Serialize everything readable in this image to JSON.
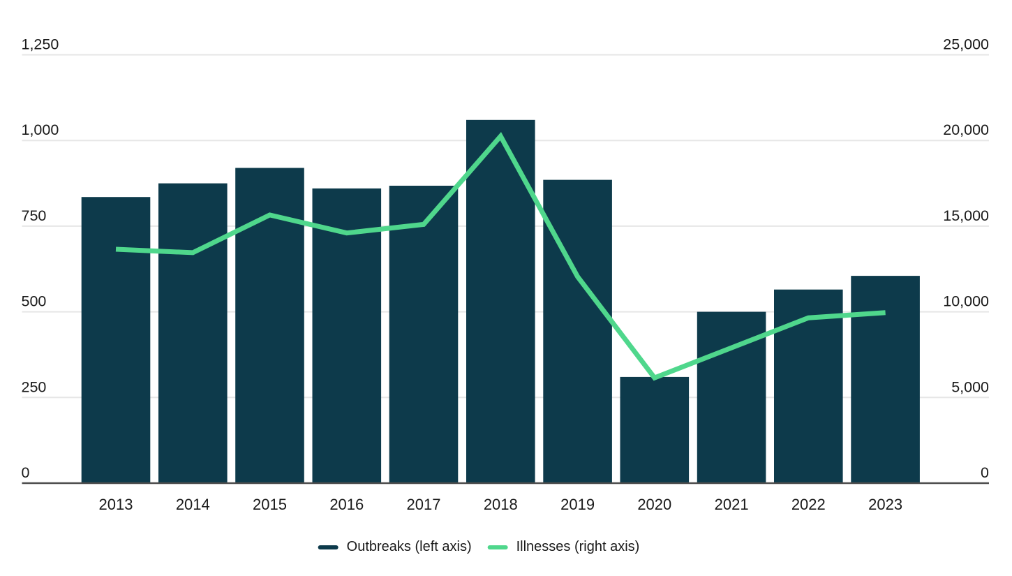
{
  "chart_data": {
    "type": "bar",
    "subtype": "dual-axis bar + line combo",
    "title": "",
    "categories": [
      "2013",
      "2014",
      "2015",
      "2016",
      "2017",
      "2018",
      "2019",
      "2020",
      "2021",
      "2022",
      "2023"
    ],
    "series": [
      {
        "name": "Outbreaks (left axis)",
        "type": "bar",
        "axis": "left",
        "color": "#0d3a4b",
        "values": [
          835,
          875,
          920,
          860,
          868,
          1060,
          885,
          310,
          500,
          565,
          605
        ]
      },
      {
        "name": "Illnesses (right axis)",
        "type": "line",
        "axis": "right",
        "color": "#4fd78c",
        "values": [
          13650,
          13450,
          15650,
          14600,
          15100,
          20250,
          12050,
          6150,
          7900,
          9650,
          9950
        ]
      }
    ],
    "left_axis": {
      "min": 0,
      "max": 1250,
      "tick_interval": 250,
      "tick_labels": [
        "0",
        "250",
        "500",
        "750",
        "1,000",
        "1,250"
      ]
    },
    "right_axis": {
      "min": 0,
      "max": 25000,
      "tick_interval": 5000,
      "tick_labels": [
        "0",
        "5,000",
        "10,000",
        "15,000",
        "20,000",
        "25,000"
      ]
    },
    "grid": true,
    "legend_position": "bottom"
  },
  "legend": {
    "items": [
      {
        "label": "Outbreaks (left axis)",
        "color": "#0d3a4b"
      },
      {
        "label": "Illnesses (right axis)",
        "color": "#4fd78c"
      }
    ]
  },
  "colors": {
    "bar": "#0d3a4b",
    "line": "#4fd78c",
    "gridline": "#e6e6e6",
    "axis_line": "#4d4d4d",
    "text": "#1a1a1a",
    "background": "#ffffff"
  }
}
